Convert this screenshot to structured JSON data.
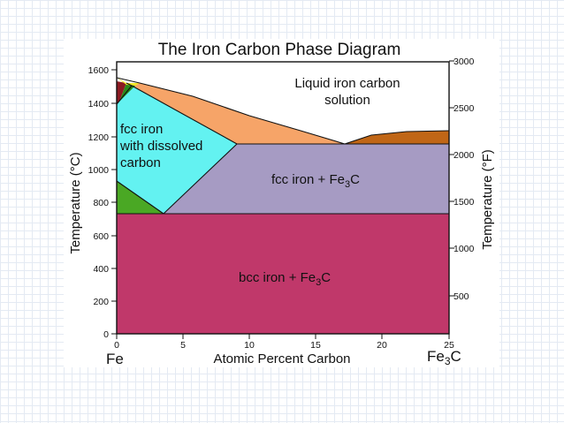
{
  "diagram": {
    "title": "The Iron Carbon Phase Diagram",
    "x_axis_label": "Atomic Percent Carbon",
    "y_axis_left_label": "Temperature (°C)",
    "y_axis_right_label": "Temperature (°F)",
    "left_ticks": [
      "0",
      "200",
      "400",
      "600",
      "800",
      "1000",
      "1200",
      "1400",
      "1600"
    ],
    "right_ticks": [
      "500",
      "1000",
      "1500",
      "2000",
      "2500",
      "3000"
    ],
    "x_ticks": [
      "0",
      "5",
      "10",
      "15",
      "20",
      "25"
    ],
    "left_end_label": "Fe",
    "right_end_label_main": "Fe",
    "right_end_label_sub": "3",
    "right_end_label_tail": "C",
    "regions": {
      "liquid_line1": "Liquid iron carbon",
      "liquid_line2": "solution",
      "fcc_line1": "fcc iron",
      "fcc_line2": "with dissolved",
      "fcc_line3": "carbon",
      "fcc_fe3c_main": "fcc iron + Fe",
      "fcc_fe3c_sub": "3",
      "fcc_fe3c_tail": "C",
      "bcc_fe3c_main": "bcc iron + Fe",
      "bcc_fe3c_sub": "3",
      "bcc_fe3c_tail": "C"
    },
    "colors": {
      "liquid": "#ffffff",
      "liquid_plus_austenite": "#f6a468",
      "austenite": "#63f2f1",
      "austenite_plus_cementite": "#a69bc3",
      "ferrite_plus_cementite": "#c0386a",
      "ferrite_plus_austenite": "#4aa824",
      "delta_ferrite": "#8c1a22",
      "delta_plus_liquid": "#f2e628",
      "liquid_plus_cementite": "#c06616"
    }
  }
}
